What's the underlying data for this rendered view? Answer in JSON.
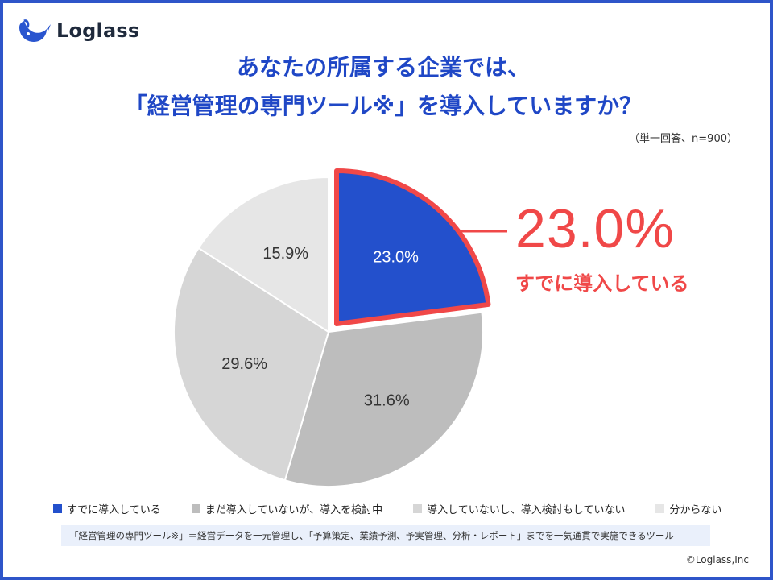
{
  "brand": {
    "name": "Loglass",
    "copyright": "©Loglass,Inc"
  },
  "title": {
    "line1": "あなたの所属する企業では、",
    "line2": "「経営管理の専門ツール※」を導入していますか？"
  },
  "note": "（単一回答、n=900）",
  "callout": {
    "value": "23.0%",
    "label": "すでに導入している"
  },
  "footnote": "「経営管理の専門ツール※」＝経営データを一元管理し、「予算策定、業績予測、予実管理、分析・レポート」までを一気通貫で実施できるツール",
  "colors": {
    "accent": "#f04848",
    "primary": "#2350cc",
    "title": "#1f47c6"
  },
  "chart_data": {
    "type": "pie",
    "categories": [
      "すでに導入している",
      "まだ導入していないが、導入を検討中",
      "導入していないし、導入検討もしていない",
      "分からない"
    ],
    "values": [
      23.0,
      31.6,
      29.6,
      15.9
    ],
    "labels": [
      "23.0%",
      "31.6%",
      "29.6%",
      "15.9%"
    ],
    "colors": [
      "#2350cc",
      "#bdbdbd",
      "#d6d6d6",
      "#e6e6e6"
    ],
    "label_colors": [
      "#ffffff",
      "#333333",
      "#333333",
      "#333333"
    ],
    "highlight_index": 0,
    "legend_position": "bottom",
    "start_angle_deg": 0,
    "direction": "clockwise"
  }
}
